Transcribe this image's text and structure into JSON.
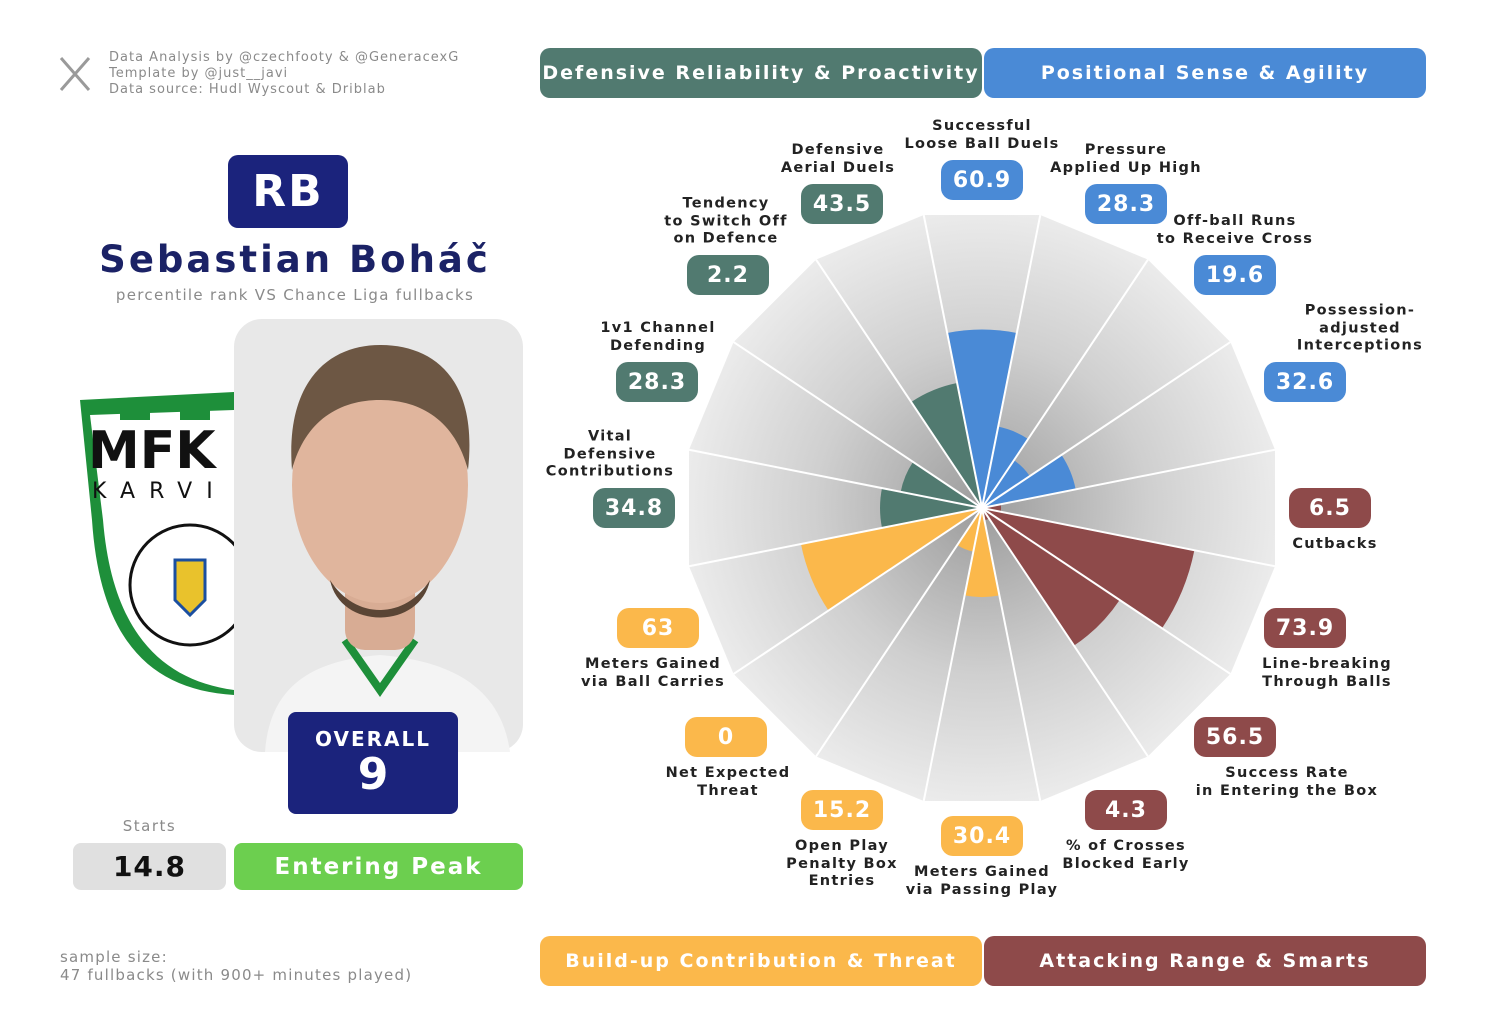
{
  "credits": [
    "Data Analysis by @czechfooty & @GeneracexG",
    "Template by @just__javi",
    "Data source: Hudl Wyscout & Driblab"
  ],
  "position": "RB",
  "player_name": "Sebastian Boháč",
  "subtitle": "percentile rank VS Chance Liga fullbacks",
  "overall_label": "OVERALL",
  "overall_value": 9,
  "starts_label": "Starts",
  "starts_value": 14.8,
  "stage": "Entering Peak",
  "sample_size": [
    "sample size:",
    "47 fullbacks (with 900+ minutes played)"
  ],
  "chart_data": {
    "type": "polar_bar",
    "ylim": [
      0,
      100
    ],
    "series": [
      {
        "name": "Positional Sense & Agility",
        "color": "#4a8ad6",
        "categories": [
          "Successful\nLoose Ball Duels",
          "Pressure\nApplied Up High",
          "Off-ball Runs\nto Receive Cross",
          "Possession-adjusted\nInterceptions"
        ],
        "values": [
          60.9,
          28.3,
          19.6,
          32.6
        ]
      },
      {
        "name": "Attacking Range & Smarts",
        "color": "#8e4a4a",
        "categories": [
          "Cutbacks",
          "Line-breaking\nThrough Balls",
          "Success Rate\nin Entering the Box",
          "% of Crosses\nBlocked Early"
        ],
        "values": [
          6.5,
          73.9,
          56.5,
          4.3
        ]
      },
      {
        "name": "Build-up Contribution & Threat",
        "color": "#fbb84b",
        "categories": [
          "Meters Gained\nvia Passing Play",
          "Open Play\nPenalty Box\nEntries",
          "Net Expected\nThreat",
          "Meters Gained\nvia Ball Carries"
        ],
        "values": [
          30.4,
          15.2,
          0,
          63
        ]
      },
      {
        "name": "Defensive Reliability & Proactivity",
        "color": "#517a70",
        "categories": [
          "Vital\nDefensive\nContributions",
          "1v1 Channel\nDefending",
          "Tendency\nto Switch Off\non Defence",
          "Defensive\nAerial Duels"
        ],
        "values": [
          34.8,
          28.3,
          2.2,
          43.5
        ]
      }
    ]
  }
}
